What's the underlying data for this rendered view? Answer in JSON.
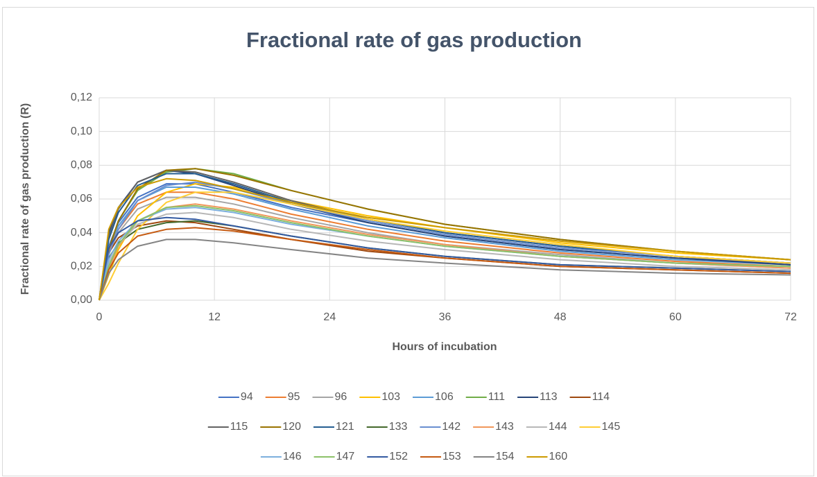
{
  "chart_data": {
    "type": "line",
    "title": "Fractional rate of gas production",
    "x_label": "Hours of incubation",
    "y_label": "Fractional rate of gas production (R)",
    "x": [
      0,
      1,
      2,
      4,
      7,
      10,
      14,
      20,
      28,
      36,
      48,
      60,
      72
    ],
    "xlim": [
      0,
      72
    ],
    "xticks": [
      0,
      12,
      24,
      36,
      48,
      60,
      72
    ],
    "ylim": [
      0,
      0.12
    ],
    "yticks": [
      {
        "value": 0,
        "label": "0,00"
      },
      {
        "value": 0.02,
        "label": "0,02"
      },
      {
        "value": 0.04,
        "label": "0,04"
      },
      {
        "value": 0.06,
        "label": "0,06"
      },
      {
        "value": 0.08,
        "label": "0,08"
      },
      {
        "value": 0.1,
        "label": "0,10"
      },
      {
        "value": 0.12,
        "label": "0,12"
      }
    ],
    "grid": true,
    "legend": "bottom",
    "series": [
      {
        "name": "94",
        "color": "#4472c4",
        "values": [
          0,
          0.032,
          0.046,
          0.061,
          0.069,
          0.069,
          0.064,
          0.055,
          0.046,
          0.038,
          0.03,
          0.025,
          0.022
        ]
      },
      {
        "name": "95",
        "color": "#ed7d31",
        "values": [
          0,
          0.029,
          0.042,
          0.057,
          0.064,
          0.064,
          0.06,
          0.051,
          0.042,
          0.035,
          0.028,
          0.023,
          0.02
        ]
      },
      {
        "name": "96",
        "color": "#a5a5a5",
        "values": [
          0,
          0.028,
          0.04,
          0.054,
          0.061,
          0.061,
          0.057,
          0.049,
          0.04,
          0.033,
          0.027,
          0.022,
          0.019
        ]
      },
      {
        "name": "103",
        "color": "#ffc000",
        "values": [
          0,
          0.015,
          0.03,
          0.05,
          0.064,
          0.069,
          0.067,
          0.059,
          0.05,
          0.043,
          0.034,
          0.028,
          0.024
        ]
      },
      {
        "name": "106",
        "color": "#5b9bd5",
        "values": [
          0,
          0.031,
          0.044,
          0.059,
          0.067,
          0.067,
          0.063,
          0.054,
          0.044,
          0.037,
          0.029,
          0.024,
          0.021
        ]
      },
      {
        "name": "111",
        "color": "#70ad47",
        "values": [
          0,
          0.03,
          0.047,
          0.065,
          0.076,
          0.078,
          0.075,
          0.065,
          0.054,
          0.045,
          0.036,
          0.029,
          0.024
        ]
      },
      {
        "name": "113",
        "color": "#264478",
        "values": [
          0,
          0.04,
          0.055,
          0.07,
          0.077,
          0.075,
          0.068,
          0.057,
          0.046,
          0.038,
          0.03,
          0.025,
          0.021
        ]
      },
      {
        "name": "114",
        "color": "#9e480e",
        "values": [
          0,
          0.028,
          0.037,
          0.044,
          0.047,
          0.046,
          0.042,
          0.036,
          0.029,
          0.025,
          0.02,
          0.018,
          0.016
        ]
      },
      {
        "name": "115",
        "color": "#636363",
        "values": [
          0,
          0.038,
          0.054,
          0.07,
          0.077,
          0.076,
          0.07,
          0.059,
          0.048,
          0.04,
          0.032,
          0.026,
          0.022
        ]
      },
      {
        "name": "120",
        "color": "#997300",
        "values": [
          0,
          0.03,
          0.047,
          0.066,
          0.077,
          0.078,
          0.074,
          0.065,
          0.054,
          0.045,
          0.036,
          0.029,
          0.024
        ]
      },
      {
        "name": "121",
        "color": "#255e91",
        "values": [
          0,
          0.036,
          0.052,
          0.068,
          0.075,
          0.075,
          0.069,
          0.058,
          0.048,
          0.04,
          0.032,
          0.026,
          0.022
        ]
      },
      {
        "name": "133",
        "color": "#43682b",
        "values": [
          0,
          0.025,
          0.034,
          0.042,
          0.046,
          0.047,
          0.044,
          0.038,
          0.031,
          0.026,
          0.021,
          0.019,
          0.017
        ]
      },
      {
        "name": "142",
        "color": "#698ed0",
        "values": [
          0,
          0.027,
          0.042,
          0.059,
          0.068,
          0.07,
          0.066,
          0.057,
          0.047,
          0.039,
          0.031,
          0.026,
          0.022
        ]
      },
      {
        "name": "143",
        "color": "#f1975a",
        "values": [
          0,
          0.018,
          0.032,
          0.047,
          0.055,
          0.057,
          0.054,
          0.047,
          0.039,
          0.033,
          0.026,
          0.022,
          0.019
        ]
      },
      {
        "name": "144",
        "color": "#b7b7b7",
        "values": [
          0,
          0.022,
          0.033,
          0.045,
          0.051,
          0.052,
          0.049,
          0.042,
          0.035,
          0.03,
          0.024,
          0.02,
          0.018
        ]
      },
      {
        "name": "145",
        "color": "#ffcd33",
        "values": [
          0,
          0.01,
          0.022,
          0.042,
          0.058,
          0.064,
          0.064,
          0.057,
          0.048,
          0.041,
          0.033,
          0.026,
          0.022
        ]
      },
      {
        "name": "146",
        "color": "#7cafdd",
        "values": [
          0,
          0.024,
          0.035,
          0.047,
          0.054,
          0.055,
          0.052,
          0.045,
          0.038,
          0.032,
          0.026,
          0.022,
          0.02
        ]
      },
      {
        "name": "147",
        "color": "#8cc168",
        "values": [
          0,
          0.02,
          0.033,
          0.047,
          0.055,
          0.056,
          0.053,
          0.046,
          0.038,
          0.032,
          0.026,
          0.022,
          0.02
        ]
      },
      {
        "name": "152",
        "color": "#335aa1",
        "values": [
          0,
          0.031,
          0.04,
          0.047,
          0.049,
          0.048,
          0.044,
          0.038,
          0.031,
          0.026,
          0.021,
          0.019,
          0.017
        ]
      },
      {
        "name": "153",
        "color": "#c55a11",
        "values": [
          0,
          0.018,
          0.028,
          0.038,
          0.042,
          0.043,
          0.041,
          0.036,
          0.03,
          0.025,
          0.02,
          0.018,
          0.016
        ]
      },
      {
        "name": "154",
        "color": "#848484",
        "values": [
          0,
          0.016,
          0.024,
          0.032,
          0.036,
          0.036,
          0.034,
          0.03,
          0.025,
          0.022,
          0.018,
          0.016,
          0.015
        ]
      },
      {
        "name": "160",
        "color": "#cc9a00",
        "values": [
          0,
          0.042,
          0.055,
          0.067,
          0.072,
          0.071,
          0.066,
          0.058,
          0.049,
          0.043,
          0.035,
          0.029,
          0.024
        ]
      }
    ]
  }
}
